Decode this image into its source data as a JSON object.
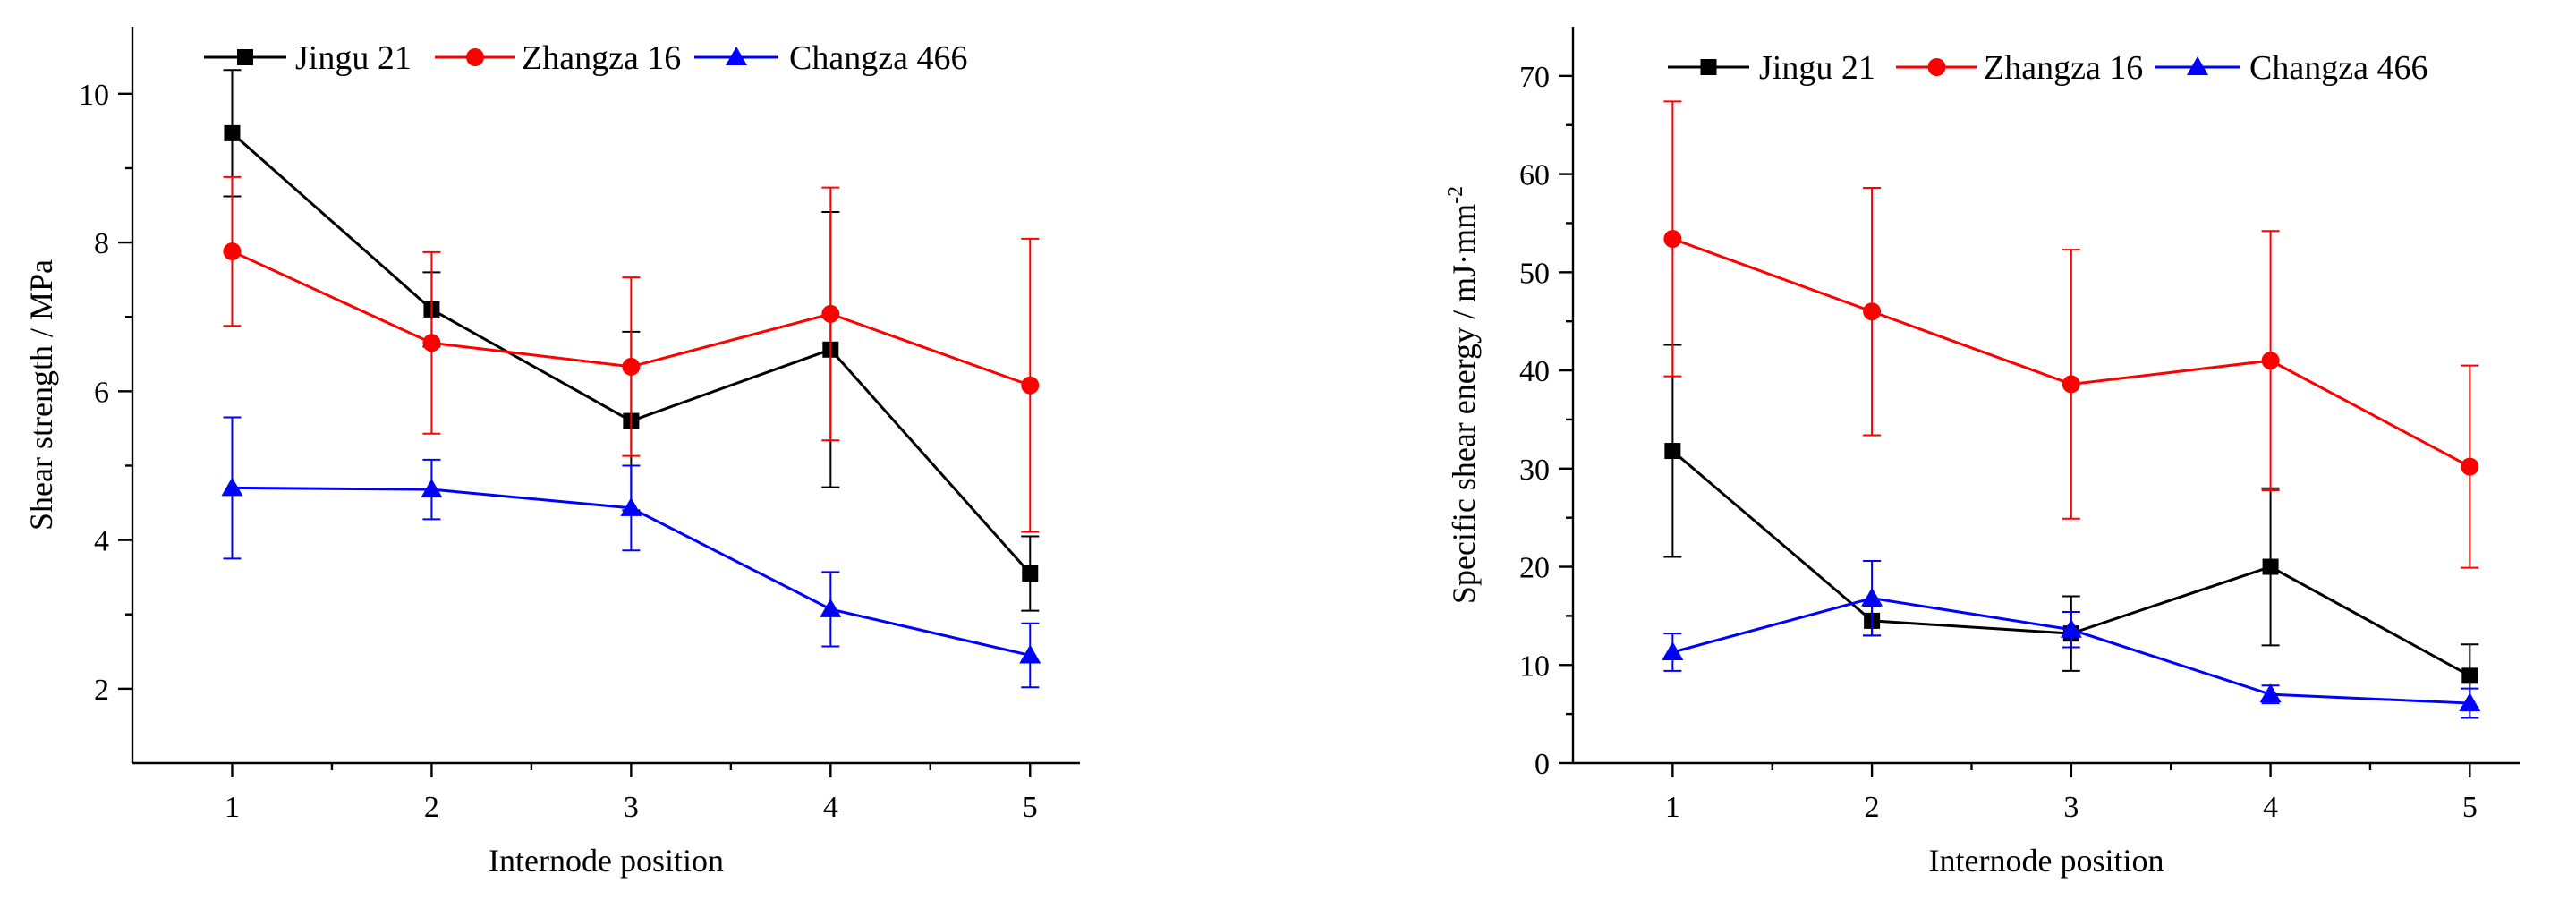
{
  "chart_data": [
    {
      "type": "line",
      "title": "",
      "xlabel": "Internode position",
      "ylabel": "Shear strength / MPa",
      "categories": [
        "1",
        "2",
        "3",
        "4",
        "5"
      ],
      "xlim": [
        0.5,
        5.25
      ],
      "ylim": [
        1.0,
        10.9
      ],
      "yticks": [
        "2",
        "4",
        "6",
        "8",
        "10"
      ],
      "ytick_values": [
        2,
        4,
        6,
        8,
        10
      ],
      "grid": false,
      "legend_position": "top",
      "series": [
        {
          "name": "Jingu 21",
          "color": "#000000",
          "marker": "square",
          "values": [
            9.47,
            7.1,
            5.6,
            6.56,
            3.55
          ],
          "err": [
            0.85,
            0.5,
            1.2,
            1.85,
            0.5
          ]
        },
        {
          "name": "Zhangza 16",
          "color": "#ff0000",
          "marker": "circle",
          "values": [
            7.88,
            6.65,
            6.33,
            7.04,
            6.08
          ],
          "err": [
            1.0,
            1.22,
            1.2,
            1.7,
            1.97
          ]
        },
        {
          "name": "Changza 466",
          "color": "#0000ff",
          "marker": "triangle",
          "values": [
            4.7,
            4.68,
            4.43,
            3.07,
            2.45
          ],
          "err": [
            0.95,
            0.4,
            0.57,
            0.5,
            0.43
          ]
        }
      ]
    },
    {
      "type": "line",
      "title": "",
      "xlabel": "Internode position",
      "ylabel": "Specific shear energy / mJ·mm",
      "ylabel_superscript": "-2",
      "categories": [
        "1",
        "2",
        "3",
        "4",
        "5"
      ],
      "xlim": [
        0.5,
        5.25
      ],
      "ylim": [
        0,
        75
      ],
      "yticks": [
        "0",
        "10",
        "20",
        "30",
        "40",
        "50",
        "60",
        "70"
      ],
      "ytick_values": [
        0,
        10,
        20,
        30,
        40,
        50,
        60,
        70
      ],
      "grid": false,
      "legend_position": "top",
      "series": [
        {
          "name": "Jingu 21",
          "color": "#000000",
          "marker": "square",
          "values": [
            31.8,
            14.5,
            13.2,
            20.0,
            8.9
          ],
          "err": [
            10.8,
            1.5,
            3.8,
            8.0,
            3.2
          ]
        },
        {
          "name": "Zhangza 16",
          "color": "#ff0000",
          "marker": "circle",
          "values": [
            53.4,
            46.0,
            38.6,
            41.0,
            30.2
          ],
          "err": [
            14.0,
            12.6,
            13.7,
            13.2,
            10.3
          ]
        },
        {
          "name": "Changza 466",
          "color": "#0000ff",
          "marker": "triangle",
          "values": [
            11.3,
            16.8,
            13.6,
            7.0,
            6.1
          ],
          "err": [
            1.9,
            3.8,
            1.8,
            0.9,
            1.5
          ]
        }
      ]
    }
  ]
}
